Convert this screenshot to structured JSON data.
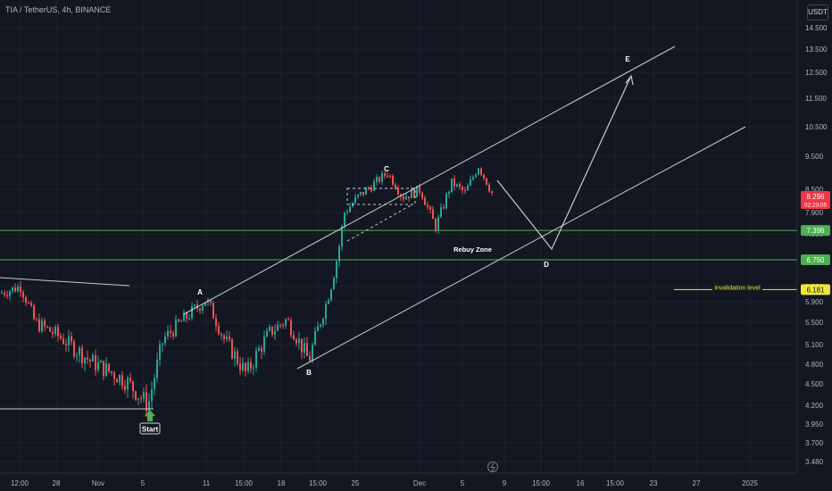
{
  "header": {
    "title": "TIA / TetherUS, 4h, BINANCE",
    "currency": "USDT"
  },
  "colors": {
    "background": "#131722",
    "up": "#26a69a",
    "down": "#ef5350",
    "text": "#b2b5be",
    "line": "#d1d4dc",
    "support": "#4caf50",
    "invalid": "#f2e53a",
    "current": "#f23645"
  },
  "chart_data": {
    "type": "candlestick",
    "symbol": "TIA / TetherUS",
    "interval": "4h",
    "exchange": "BINANCE",
    "y_ticks": [
      "14.500",
      "13.500",
      "12.500",
      "11.500",
      "10.500",
      "9.500",
      "8.500",
      "7.900",
      "7.300",
      "6.750",
      "6.250",
      "5.900",
      "5.500",
      "5.100",
      "4.800",
      "4.500",
      "4.200",
      "3.950",
      "3.700",
      "3.480"
    ],
    "x_ticks": [
      "12:00",
      "28",
      "Nov",
      "5",
      "11",
      "15:00",
      "18",
      "15:00",
      "25",
      "Dec",
      "5",
      "9",
      "15:00",
      "16",
      "15:00",
      "23",
      "27",
      "2025"
    ],
    "price_tags": [
      {
        "label": "8.296",
        "sublabel": "02:23:05",
        "kind": "current"
      },
      {
        "label": "7.396",
        "kind": "support"
      },
      {
        "label": "6.750",
        "kind": "support"
      },
      {
        "label": "6.181",
        "kind": "invalid"
      }
    ],
    "horizontal_levels": [
      {
        "price": 7.396,
        "name": "Rebuy Zone"
      },
      {
        "price": 6.75
      },
      {
        "price": 6.181,
        "name": "invalidation level"
      }
    ],
    "waves": [
      {
        "label": "Start",
        "price": 4.2
      },
      {
        "label": "A",
        "price": 6.0
      },
      {
        "label": "B",
        "price": 4.8
      },
      {
        "label": "C",
        "price": 9.0
      },
      {
        "label": "D",
        "price": 6.75
      },
      {
        "label": "E",
        "price": 12.8
      }
    ],
    "annotations": [
      "Rebuy Zone",
      "invalidation level"
    ]
  }
}
